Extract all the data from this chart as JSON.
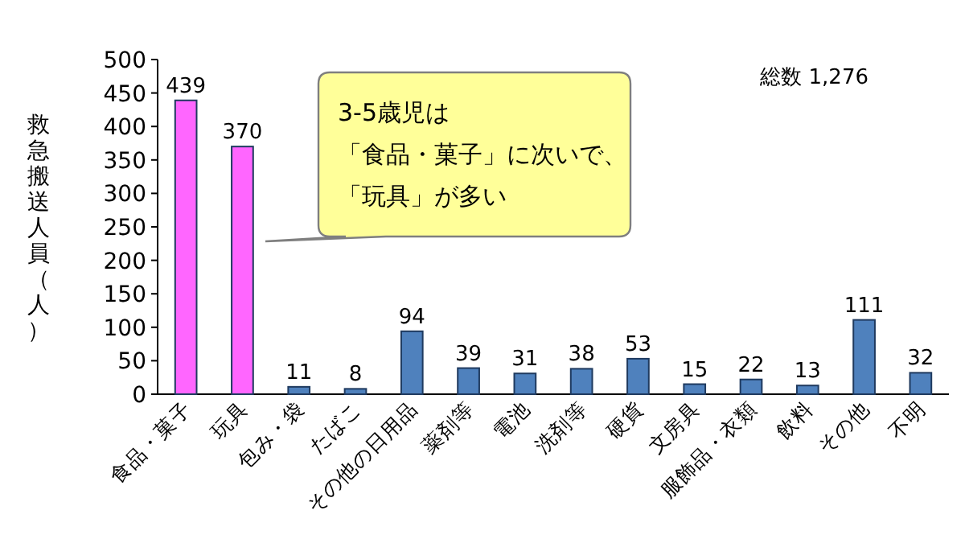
{
  "chart_data": {
    "type": "bar",
    "categories": [
      "食品・菓子",
      "玩具",
      "包み・袋",
      "たばこ",
      "その他の日用品",
      "薬剤等",
      "電池",
      "洗剤等",
      "硬貨",
      "文房具",
      "服飾品・衣類",
      "飲料",
      "その他",
      "不明"
    ],
    "values": [
      439,
      370,
      11,
      8,
      94,
      39,
      31,
      38,
      53,
      15,
      22,
      13,
      111,
      32
    ],
    "colors": [
      "#ff66ff",
      "#ff66ff",
      "#4f81bd",
      "#4f81bd",
      "#4f81bd",
      "#4f81bd",
      "#4f81bd",
      "#4f81bd",
      "#4f81bd",
      "#4f81bd",
      "#4f81bd",
      "#4f81bd",
      "#4f81bd",
      "#4f81bd"
    ],
    "ylabel": "救急搬送人員（人）",
    "ylim": [
      0,
      500
    ],
    "yticks": [
      0,
      50,
      100,
      150,
      200,
      250,
      300,
      350,
      400,
      450,
      500
    ],
    "data_labels": true,
    "annotations": [
      "総数 1,276",
      "3-5歳児は",
      "「食品・菓子」に次いで、",
      "「玩具」が多い"
    ]
  }
}
